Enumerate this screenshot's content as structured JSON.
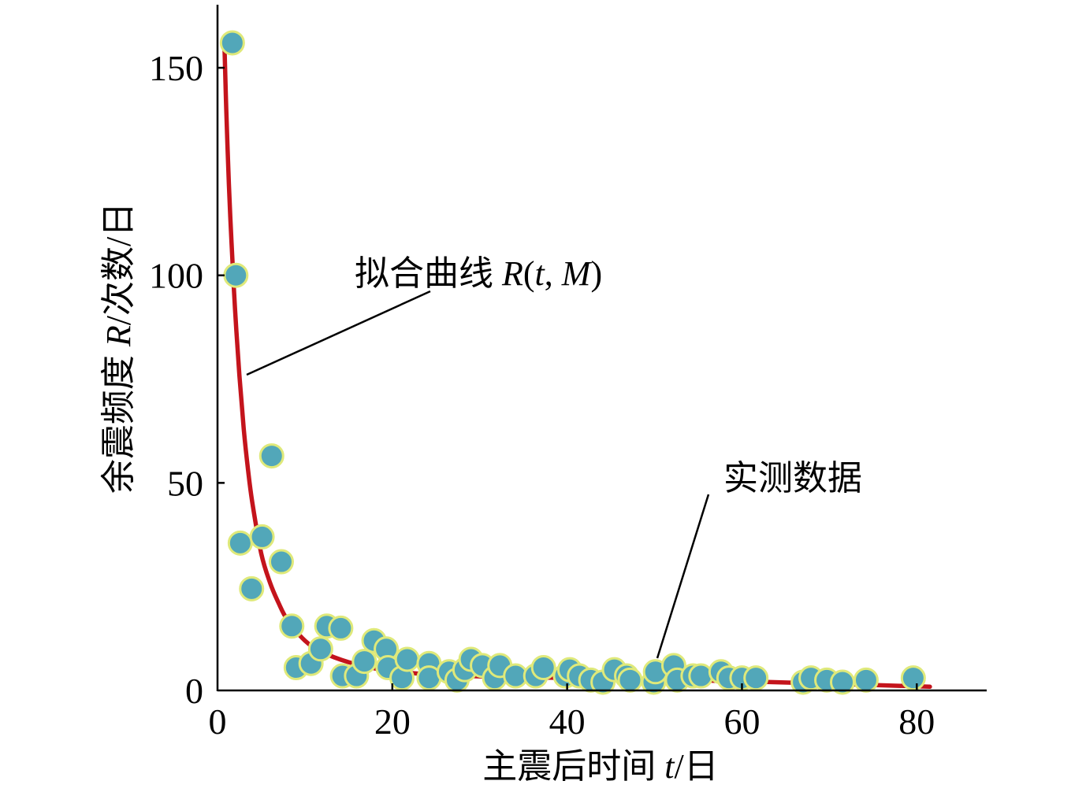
{
  "chart_data": {
    "type": "scatter",
    "xlabel": "主震后时间 t/日",
    "ylabel": "余震频度 R/次数/日",
    "xlim": [
      0,
      88
    ],
    "ylim": [
      0,
      165
    ],
    "xticks": [
      0,
      20,
      40,
      60,
      80
    ],
    "yticks": [
      0,
      50,
      100,
      150
    ],
    "grid": false,
    "colors": {
      "points": "#52a7b9",
      "point_outline": "#dfe97a",
      "fit": "#c4141c"
    },
    "series": [
      {
        "name": "实测数据",
        "type": "scatter",
        "x": [
          1.7,
          2.1,
          2.6,
          3.9,
          5.1,
          6.2,
          7.3,
          8.5,
          9.0,
          10.7,
          11.8,
          12.5,
          14.1,
          14.3,
          15.9,
          16.8,
          17.9,
          19.3,
          19.5,
          21.1,
          21.7,
          24.2,
          24.2,
          26.5,
          27.4,
          28.3,
          29.0,
          30.3,
          31.7,
          32.3,
          34.1,
          36.4,
          37.3,
          39.8,
          40.3,
          41.4,
          42.7,
          44.1,
          45.4,
          46.8,
          47.2,
          49.9,
          50.1,
          52.2,
          52.6,
          54.4,
          55.3,
          57.6,
          58.5,
          60.0,
          61.6,
          67.0,
          67.9,
          69.7,
          71.5,
          74.2,
          79.6
        ],
        "y": [
          156,
          100,
          35.5,
          24.5,
          37,
          56.5,
          31,
          15.5,
          5.5,
          6.5,
          10,
          15.5,
          15,
          3.5,
          3.5,
          7,
          12,
          10,
          5.5,
          3,
          7.5,
          6.5,
          3,
          4.5,
          2.5,
          5,
          7.5,
          6,
          3,
          6,
          3.5,
          3.5,
          5.5,
          3.5,
          5,
          3.5,
          2.5,
          2,
          5,
          3.5,
          2.5,
          2,
          4.5,
          6,
          2.5,
          3.5,
          3.5,
          4.5,
          3,
          3,
          3,
          2,
          3,
          2.5,
          2,
          2.5,
          3
        ]
      },
      {
        "name": "拟合曲线 R(t, M)",
        "type": "line",
        "x": [
          0.8,
          1.0,
          1.3,
          1.6,
          2.0,
          2.5,
          3.0,
          3.5,
          4.0,
          5.0,
          6.0,
          7.0,
          8.0,
          10,
          12,
          15,
          18,
          20,
          25,
          30,
          40,
          50,
          60,
          70,
          81.5
        ],
        "y": [
          155,
          140,
          122,
          108,
          92,
          76,
          63,
          53,
          45,
          33,
          26,
          21,
          17,
          12,
          9.2,
          6.8,
          5.3,
          4.6,
          3.8,
          3.4,
          3.0,
          2.6,
          2.2,
          1.6,
          0.9
        ]
      }
    ]
  }
}
